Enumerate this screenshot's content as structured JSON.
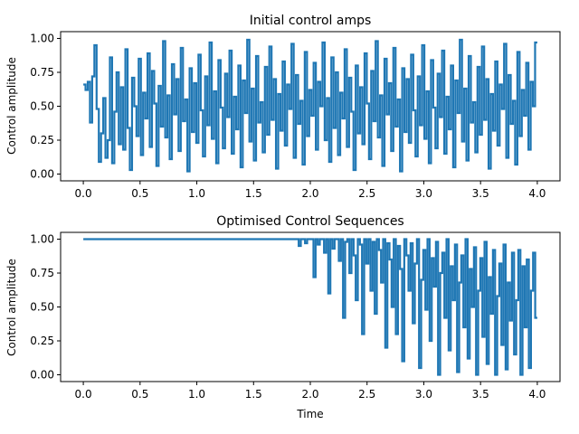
{
  "chart_data": [
    {
      "type": "line",
      "title": "Initial control amps",
      "xlabel": "",
      "ylabel": "Control amplitude",
      "xlim": [
        -0.2,
        4.2
      ],
      "ylim": [
        -0.05,
        1.05
      ],
      "xticks": [
        "0.0",
        "0.5",
        "1.0",
        "1.5",
        "2.0",
        "2.5",
        "3.0",
        "3.5",
        "4.0"
      ],
      "yticks": [
        "0.00",
        "0.25",
        "0.50",
        "0.75",
        "1.00"
      ],
      "grid": false,
      "series_color": "#1f77b4",
      "step": 0.02,
      "x_start": 0.0,
      "x_end": 4.0,
      "values": [
        0.66,
        0.62,
        0.68,
        0.38,
        0.72,
        0.95,
        0.48,
        0.09,
        0.3,
        0.56,
        0.12,
        0.25,
        0.86,
        0.08,
        0.46,
        0.75,
        0.22,
        0.64,
        0.18,
        0.92,
        0.34,
        0.03,
        0.71,
        0.5,
        0.28,
        0.85,
        0.14,
        0.6,
        0.41,
        0.89,
        0.2,
        0.76,
        0.52,
        0.06,
        0.65,
        0.35,
        0.98,
        0.27,
        0.58,
        0.11,
        0.81,
        0.44,
        0.7,
        0.17,
        0.93,
        0.39,
        0.55,
        0.02,
        0.78,
        0.31,
        0.67,
        0.23,
        0.88,
        0.47,
        0.13,
        0.72,
        0.36,
        0.97,
        0.26,
        0.61,
        0.08,
        0.84,
        0.49,
        0.19,
        0.74,
        0.42,
        0.91,
        0.15,
        0.57,
        0.33,
        0.8,
        0.05,
        0.69,
        0.45,
        0.99,
        0.24,
        0.63,
        0.1,
        0.87,
        0.38,
        0.53,
        0.16,
        0.79,
        0.29,
        0.94,
        0.4,
        0.7,
        0.04,
        0.59,
        0.32,
        0.83,
        0.21,
        0.66,
        0.48,
        0.96,
        0.12,
        0.73,
        0.37,
        0.54,
        0.07,
        0.9,
        0.28,
        0.62,
        0.43,
        0.82,
        0.18,
        0.68,
        0.5,
        0.97,
        0.25,
        0.56,
        0.09,
        0.86,
        0.34,
        0.75,
        0.14,
        0.6,
        0.41,
        0.92,
        0.2,
        0.71,
        0.46,
        0.03,
        0.8,
        0.3,
        0.64,
        0.22,
        0.89,
        0.52,
        0.11,
        0.76,
        0.39,
        0.98,
        0.27,
        0.58,
        0.06,
        0.85,
        0.44,
        0.67,
        0.17,
        0.93,
        0.35,
        0.55,
        0.02,
        0.78,
        0.31,
        0.7,
        0.23,
        0.88,
        0.47,
        0.13,
        0.72,
        0.36,
        0.95,
        0.26,
        0.61,
        0.08,
        0.84,
        0.49,
        0.19,
        0.74,
        0.42,
        0.91,
        0.15,
        0.57,
        0.33,
        0.8,
        0.05,
        0.69,
        0.45,
        0.99,
        0.24,
        0.63,
        0.1,
        0.87,
        0.38,
        0.53,
        0.16,
        0.79,
        0.29,
        0.94,
        0.4,
        0.7,
        0.04,
        0.59,
        0.32,
        0.83,
        0.21,
        0.66,
        0.48,
        0.96,
        0.12,
        0.73,
        0.37,
        0.54,
        0.07,
        0.9,
        0.28,
        0.62,
        0.43,
        0.82,
        0.18,
        0.68,
        0.5,
        0.97
      ]
    },
    {
      "type": "line",
      "title": "Optimised Control Sequences",
      "xlabel": "Time",
      "ylabel": "Control amplitude",
      "xlim": [
        -0.2,
        4.2
      ],
      "ylim": [
        -0.05,
        1.05
      ],
      "xticks": [
        "0.0",
        "0.5",
        "1.0",
        "1.5",
        "2.0",
        "2.5",
        "3.0",
        "3.5",
        "4.0"
      ],
      "yticks": [
        "0.00",
        "0.25",
        "0.50",
        "0.75",
        "1.00"
      ],
      "grid": false,
      "series_color": "#1f77b4",
      "step": 0.02,
      "x_start": 0.0,
      "x_end": 4.0,
      "values": [
        1,
        1,
        1,
        1,
        1,
        1,
        1,
        1,
        1,
        1,
        1,
        1,
        1,
        1,
        1,
        1,
        1,
        1,
        1,
        1,
        1,
        1,
        1,
        1,
        1,
        1,
        1,
        1,
        1,
        1,
        1,
        1,
        1,
        1,
        1,
        1,
        1,
        1,
        1,
        1,
        1,
        1,
        1,
        1,
        1,
        1,
        1,
        1,
        1,
        1,
        1,
        1,
        1,
        1,
        1,
        1,
        1,
        1,
        1,
        1,
        1,
        1,
        1,
        1,
        1,
        1,
        1,
        1,
        1,
        1,
        1,
        1,
        1,
        1,
        1,
        1,
        1,
        1,
        1,
        1,
        1,
        1,
        1,
        1,
        1,
        1,
        1,
        1,
        1,
        1,
        1,
        1,
        1,
        1,
        1,
        1,
        1,
        1,
        1,
        1,
        1,
        1,
        0.95,
        1,
        1,
        0.97,
        1,
        1,
        1,
        0.72,
        1,
        0.96,
        1,
        1,
        0.9,
        1,
        0.6,
        1,
        0.93,
        1,
        1,
        0.84,
        1,
        0.42,
        0.98,
        1,
        0.75,
        1,
        0.88,
        0.55,
        1,
        0.96,
        0.3,
        1,
        0.82,
        1,
        0.62,
        0.98,
        0.45,
        1,
        0.92,
        0.68,
        1,
        0.2,
        0.97,
        0.85,
        0.5,
        1,
        0.3,
        0.95,
        0.78,
        0.1,
        1,
        0.88,
        0.62,
        0.97,
        0.38,
        0.82,
        1,
        0.05,
        0.7,
        0.92,
        0.48,
        1,
        0.25,
        0.86,
        0.65,
        0.98,
        0,
        0.75,
        0.9,
        0.42,
        1,
        0.18,
        0.8,
        0.55,
        0.96,
        0.02,
        0.68,
        0.88,
        0.35,
        1,
        0.12,
        0.78,
        0.5,
        0.94,
        0,
        0.62,
        0.86,
        0.28,
        0.98,
        0.08,
        0.72,
        0.45,
        0.92,
        0,
        0.58,
        0.82,
        0.22,
        0.96,
        0.04,
        0.68,
        0.4,
        0.9,
        0.15,
        0.55,
        0.92,
        0,
        0.8,
        0.35,
        0.85,
        0.05,
        0.62,
        0.9,
        0.42
      ]
    }
  ]
}
